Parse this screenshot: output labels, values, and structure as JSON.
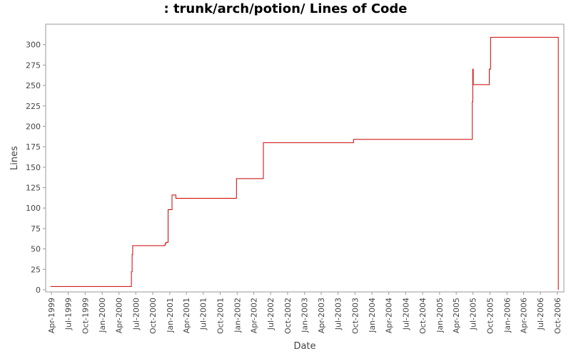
{
  "chart_data": {
    "type": "line",
    "title": ": trunk/arch/potion/ Lines of Code",
    "xlabel": "Date",
    "ylabel": "Lines",
    "ylim": [
      0,
      325
    ],
    "xlim": [
      "1999-03-01",
      "2006-11-05"
    ],
    "y_ticks": [
      0,
      25,
      50,
      75,
      100,
      125,
      150,
      175,
      200,
      225,
      250,
      275,
      300
    ],
    "x_tick_labels": [
      "Apr-1999",
      "Jul-1999",
      "Oct-1999",
      "Jan-2000",
      "Apr-2000",
      "Jul-2000",
      "Oct-2000",
      "Jan-2001",
      "Apr-2001",
      "Jul-2001",
      "Oct-2001",
      "Jan-2002",
      "Apr-2002",
      "Jul-2002",
      "Oct-2002",
      "Jan-2003",
      "Apr-2003",
      "Jul-2003",
      "Oct-2003",
      "Jan-2004",
      "Apr-2004",
      "Jul-2004",
      "Oct-2004",
      "Jan-2005",
      "Apr-2005",
      "Jul-2005",
      "Oct-2005",
      "Jan-2006",
      "Apr-2006",
      "Jul-2006",
      "Oct-2006"
    ],
    "x_ticks": [
      "1999-04-01",
      "1999-07-01",
      "1999-10-01",
      "2000-01-01",
      "2000-04-01",
      "2000-07-01",
      "2000-10-01",
      "2001-01-01",
      "2001-04-01",
      "2001-07-01",
      "2001-10-01",
      "2002-01-01",
      "2002-04-01",
      "2002-07-01",
      "2002-10-01",
      "2003-01-01",
      "2003-04-01",
      "2003-07-01",
      "2003-10-01",
      "2004-01-01",
      "2004-04-01",
      "2004-07-01",
      "2004-10-01",
      "2005-01-01",
      "2005-04-01",
      "2005-07-01",
      "2005-10-01",
      "2006-01-01",
      "2006-04-01",
      "2006-07-01",
      "2006-10-01"
    ],
    "grid": false,
    "color": "#cc0000",
    "series": [
      {
        "x": [
          "1999-03-27",
          "2000-06-07",
          "2000-06-11",
          "2000-06-14",
          "2000-12-06",
          "2000-12-11",
          "2000-12-23",
          "2001-01-05",
          "2001-01-13",
          "2001-02-03",
          "2001-12-28",
          "2002-05-23",
          "2003-09-23",
          "2005-06-27",
          "2005-06-30",
          "2005-07-02",
          "2005-07-04",
          "2005-09-27",
          "2005-10-04",
          "2006-10-06"
        ],
        "y": [
          4,
          22,
          43,
          54,
          56,
          58,
          98,
          98,
          116,
          112,
          136,
          180,
          184,
          230,
          270,
          251,
          251,
          270,
          309,
          0
        ]
      }
    ]
  }
}
